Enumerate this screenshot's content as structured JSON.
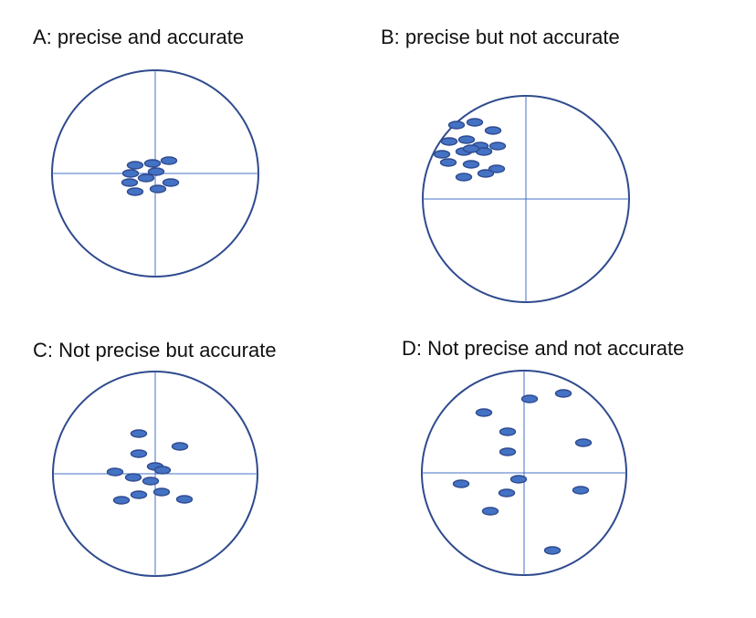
{
  "colors": {
    "circle": "#2f4a8e",
    "crosshair": "#4472c4",
    "dot_fill": "#4472c4",
    "dot_stroke": "#2f4a8e"
  },
  "panels": [
    {
      "id": "a",
      "title": "A: precise and accurate"
    },
    {
      "id": "b",
      "title": "B: precise but not accurate"
    },
    {
      "id": "c",
      "title": "C: Not precise but accurate"
    },
    {
      "id": "d",
      "title": "D: Not precise and not accurate"
    }
  ]
}
